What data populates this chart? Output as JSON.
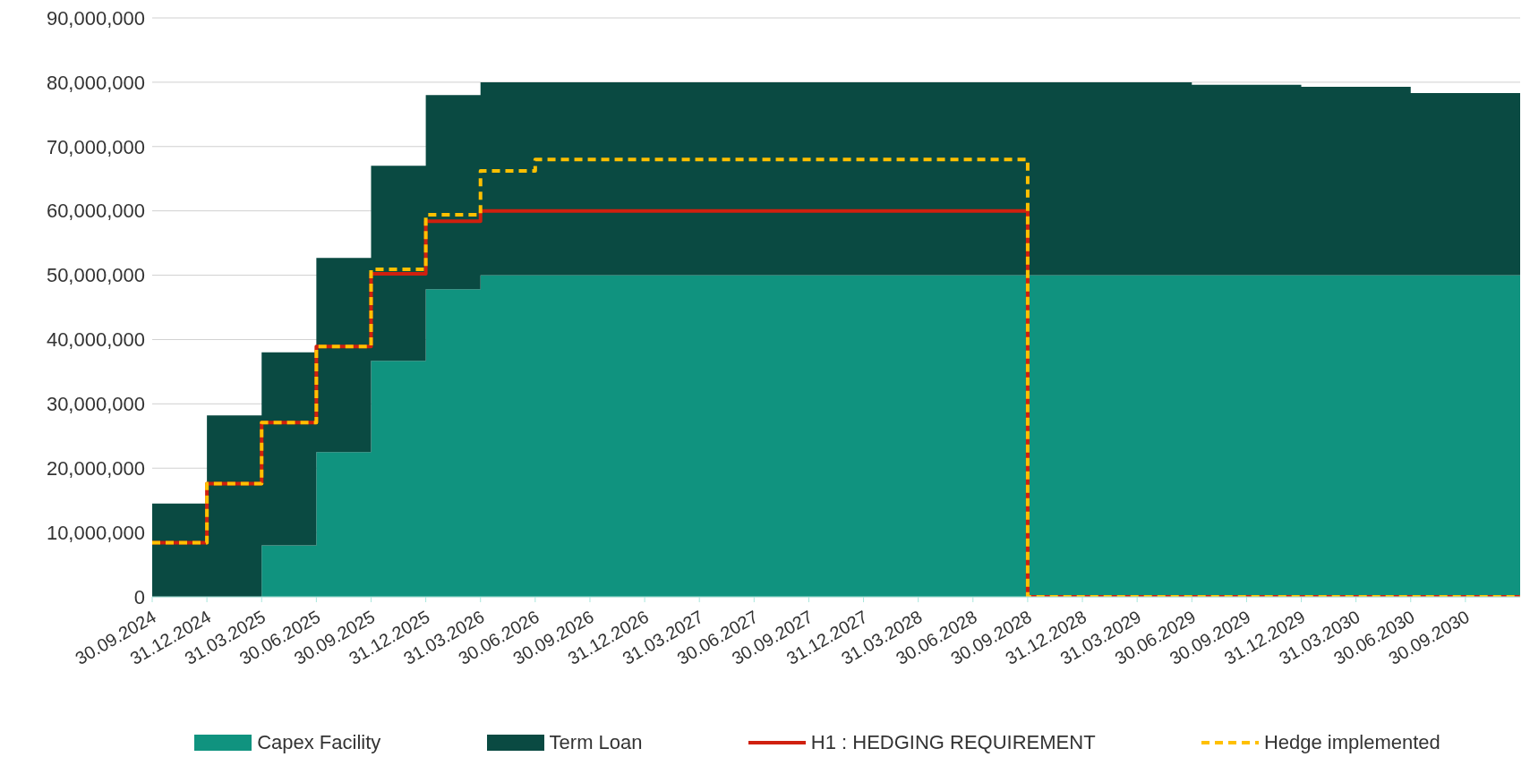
{
  "chart_data": {
    "type": "area",
    "stacked": true,
    "grid": "y",
    "legend": "bottom",
    "categories": [
      "30.09.2024",
      "31.12.2024",
      "31.03.2025",
      "30.06.2025",
      "30.09.2025",
      "31.12.2025",
      "31.03.2026",
      "30.06.2026",
      "30.09.2026",
      "31.12.2026",
      "31.03.2027",
      "30.06.2027",
      "30.09.2027",
      "31.12.2027",
      "31.03.2028",
      "30.06.2028",
      "30.09.2028",
      "31.12.2028",
      "31.03.2029",
      "30.06.2029",
      "30.09.2029",
      "31.12.2029",
      "31.03.2030",
      "30.06.2030",
      "30.09.2030",
      null
    ],
    "ylim": [
      0,
      90000000
    ],
    "yticks": [
      {
        "value": 0,
        "label": "0"
      },
      {
        "value": 10000000,
        "label": "10,000,000"
      },
      {
        "value": 20000000,
        "label": "20,000,000"
      },
      {
        "value": 30000000,
        "label": "30,000,000"
      },
      {
        "value": 40000000,
        "label": "40,000,000"
      },
      {
        "value": 50000000,
        "label": "50,000,000"
      },
      {
        "value": 60000000,
        "label": "60,000,000"
      },
      {
        "value": 70000000,
        "label": "70,000,000"
      },
      {
        "value": 80000000,
        "label": "80,000,000"
      },
      {
        "value": 90000000,
        "label": "90,000,000"
      }
    ],
    "series": [
      {
        "name": "Capex Facility",
        "color": "#10937f",
        "values": [
          0,
          0,
          8000000,
          22500000,
          36700000,
          47800000,
          50000000,
          50000000,
          50000000,
          50000000,
          50000000,
          50000000,
          50000000,
          50000000,
          50000000,
          50000000,
          50000000,
          50000000,
          50000000,
          50000000,
          50000000,
          50000000,
          50000000,
          50000000,
          50000000,
          50000000
        ]
      },
      {
        "name": "Term Loan",
        "color": "#0a4a42",
        "values": [
          14500000,
          28200000,
          30000000,
          30200000,
          30300000,
          30200000,
          30000000,
          30000000,
          30000000,
          30000000,
          30000000,
          30000000,
          30000000,
          30000000,
          30000000,
          30000000,
          30000000,
          30000000,
          30000000,
          29600000,
          29600000,
          29300000,
          29300000,
          28300000,
          28300000,
          28300000
        ]
      },
      {
        "name": "H1 : HEDGING REQUIREMENT",
        "type": "step",
        "color": "#d0200f",
        "line_style": "solid",
        "values": [
          8400000,
          17600000,
          27100000,
          38900000,
          50200000,
          58400000,
          60000000,
          60000000,
          60000000,
          60000000,
          60000000,
          60000000,
          60000000,
          60000000,
          60000000,
          60000000,
          0,
          0,
          0,
          0,
          0,
          0,
          0,
          0,
          0,
          0
        ]
      },
      {
        "name": "Hedge implemented",
        "type": "step",
        "color": "#ffc000",
        "line_style": "dashed",
        "values": [
          8400000,
          17600000,
          27100000,
          38900000,
          50900000,
          59400000,
          66200000,
          68000000,
          68000000,
          68000000,
          68000000,
          68000000,
          68000000,
          68000000,
          68000000,
          68000000,
          0,
          0,
          0,
          0,
          0,
          0,
          0,
          0,
          0,
          0
        ]
      }
    ]
  }
}
